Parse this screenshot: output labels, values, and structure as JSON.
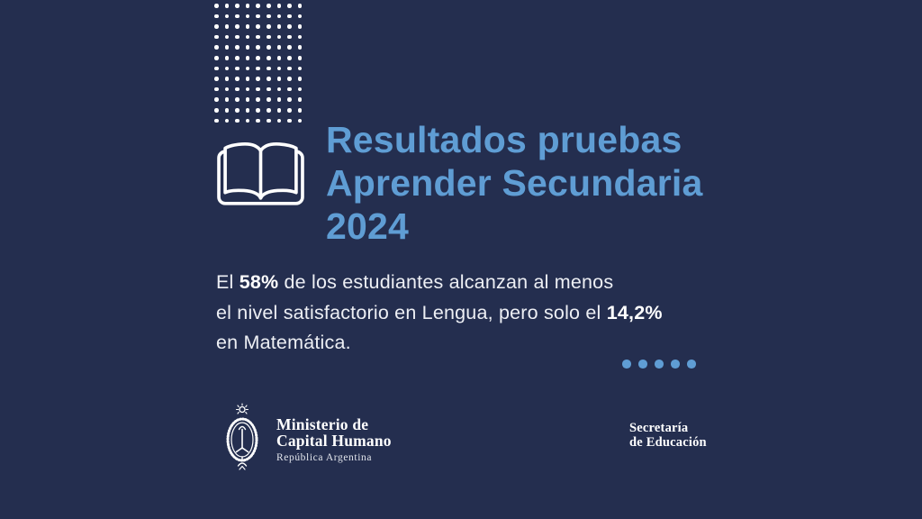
{
  "page": {
    "colors": {
      "background": "#242E4F",
      "accent": "#5F9DD4",
      "text": "#EDEFF4",
      "bright": "#FFFFFF"
    }
  },
  "title": {
    "text": "Resultados pruebas\nAprender Secundaria\n2024"
  },
  "body": {
    "lines": [
      [
        {
          "t": "El ",
          "b": false
        },
        {
          "t": "58%",
          "b": true
        },
        {
          "t": " de los estudiantes alcanzan al menos",
          "b": false
        }
      ],
      [
        {
          "t": "el nivel satisfactorio en Lengua, pero solo el ",
          "b": false
        },
        {
          "t": "14,2%",
          "b": true
        }
      ],
      [
        {
          "t": "en Matemática.",
          "b": false
        }
      ]
    ]
  },
  "decor": {
    "dot_grid": {
      "rows": 12,
      "cols": 9
    },
    "accent_dots": {
      "count": 5
    }
  },
  "icons": {
    "book": "open-book-icon",
    "coat_of_arms": "argentina-coat-of-arms-icon"
  },
  "footer": {
    "ministry": {
      "line1": "Ministerio de",
      "line2": "Capital Humano",
      "subline": "República Argentina"
    },
    "secretariat": {
      "line1": "Secretaría",
      "line2": "de Educación"
    }
  }
}
